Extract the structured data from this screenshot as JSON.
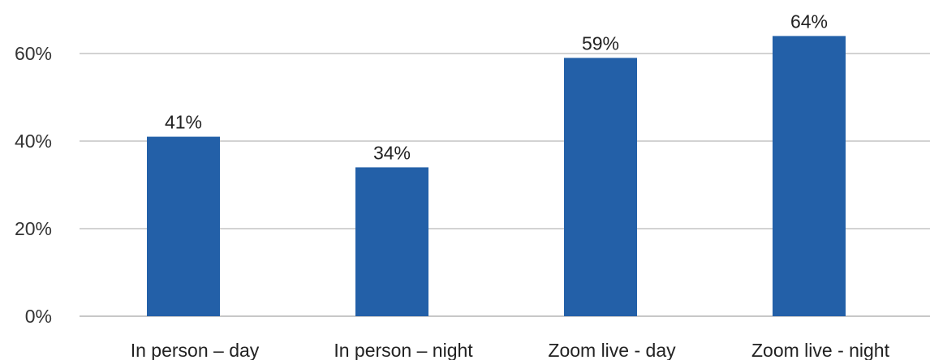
{
  "chart_data": {
    "type": "bar",
    "title": "",
    "xlabel": "",
    "ylabel": "",
    "categories": [
      "In person – day",
      "In person – night",
      "Zoom live - day",
      "Zoom live - night"
    ],
    "values": [
      41,
      34,
      59,
      64
    ],
    "data_labels": [
      "41%",
      "34%",
      "59%",
      "64%"
    ],
    "ylim": [
      0,
      65
    ],
    "yticks": [
      0,
      20,
      40,
      60
    ],
    "ytick_labels": [
      "0%",
      "20%",
      "40%",
      "60%"
    ],
    "grid": true,
    "legend": "none",
    "bar_color": "#2360a8",
    "grid_color": "#d3d3d3"
  }
}
